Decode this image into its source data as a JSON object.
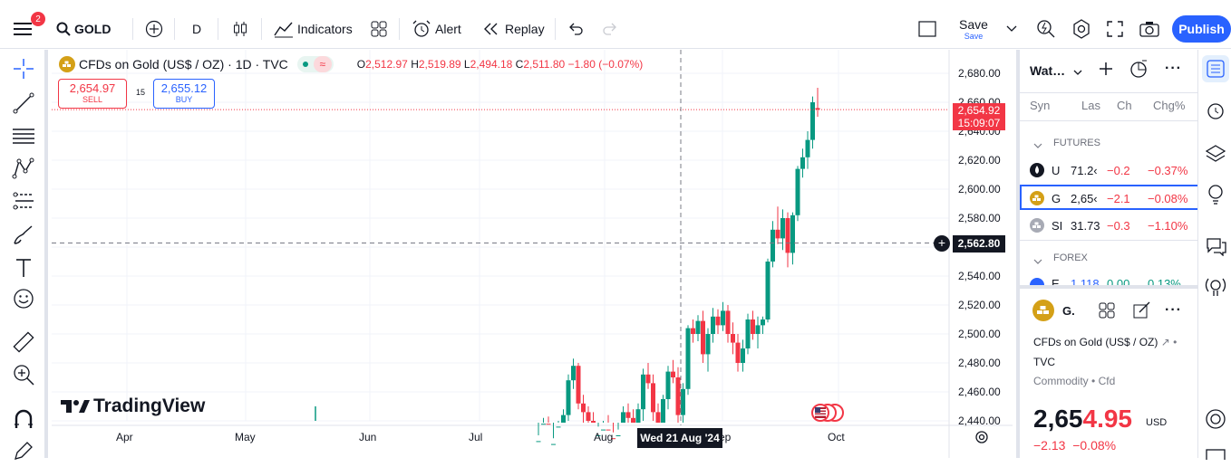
{
  "toolbar": {
    "menu_badge": "2",
    "symbol": "GOLD",
    "interval": "D",
    "indicators_label": "Indicators",
    "alert_label": "Alert",
    "replay_label": "Replay",
    "save_label": "Save",
    "save_sublabel": "Save",
    "publish_label": "Publish"
  },
  "legend": {
    "title": "CFDs on Gold (US$ / OZ) · 1D · TVC",
    "open_label": "O",
    "open": "2,512.97",
    "high_label": "H",
    "high": "2,519.89",
    "low_label": "L",
    "low": "2,494.18",
    "close_label": "C",
    "close": "2,511.80",
    "change": "−1.80 (−0.07%)",
    "sell_price": "2,654.97",
    "sell_label": "SELL",
    "spread": "15",
    "buy_price": "2,655.12",
    "buy_label": "BUY"
  },
  "price_axis": {
    "ticks": [
      "2,680.00",
      "2,660.00",
      "2,640.00",
      "2,620.00",
      "2,600.00",
      "2,580.00",
      "2,560.00",
      "2,540.00",
      "2,520.00",
      "2,500.00",
      "2,480.00",
      "2,460.00",
      "2,440.00"
    ],
    "last_price": "2,654.92",
    "countdown": "15:09:07",
    "crosshair_price": "2,562.80"
  },
  "time_axis": {
    "labels": [
      "Apr",
      "May",
      "Jun",
      "Jul",
      "Aug",
      "Sep",
      "Oct"
    ],
    "crosshair_date": "Wed 21 Aug '24"
  },
  "watermark": "TradingView",
  "watchlist": {
    "title": "Wat…",
    "col_symbol": "Syn",
    "col_last": "Las",
    "col_change": "Ch",
    "col_change_pct": "Chg%",
    "sections": [
      {
        "name": "FUTURES",
        "rows": [
          {
            "sym": "U",
            "last": "71.2‹",
            "chg": "−0.2",
            "pct": "−0.37%",
            "icon": "oil-drop-icon"
          },
          {
            "sym": "G",
            "last": "2,65‹",
            "chg": "−2.1",
            "pct": "−0.08%",
            "icon": "gold-bars-icon"
          },
          {
            "sym": "SI",
            "last": "31.73",
            "chg": "−0.3",
            "pct": "−1.10%",
            "icon": "silver-bars-icon"
          }
        ]
      },
      {
        "name": "FOREX",
        "rows": [
          {
            "sym": "E",
            "last": "1.118",
            "chg": "0.00",
            "pct": "0.13%",
            "icon": "eu-flag-icon"
          }
        ]
      }
    ]
  },
  "details": {
    "symbol_short": "G.",
    "name": "CFDs on Gold (US$ / OZ)",
    "exchange": "TVC",
    "category": "Commodity",
    "subcategory": "Cfd",
    "price_main": "2,65",
    "price_highlight": "4.95",
    "currency": "USD",
    "change": "−2.13",
    "change_pct": "−0.08%"
  },
  "colors": {
    "up": "#089981",
    "down": "#f23645",
    "accent": "#2962ff",
    "gold": "#d4a017"
  },
  "candles": [
    [
      2406,
      2430,
      2398,
      2426
    ],
    [
      2426,
      2442,
      2420,
      2438
    ],
    [
      2438,
      2443,
      2405,
      2412
    ],
    [
      2412,
      2428,
      2408,
      2424
    ],
    [
      2424,
      2440,
      2418,
      2436
    ],
    [
      2436,
      2448,
      2430,
      2444
    ],
    [
      2444,
      2472,
      2440,
      2468
    ],
    [
      2468,
      2483,
      2462,
      2478
    ],
    [
      2478,
      2480,
      2448,
      2452
    ],
    [
      2452,
      2458,
      2438,
      2446
    ],
    [
      2446,
      2450,
      2436,
      2440
    ],
    [
      2440,
      2446,
      2420,
      2424
    ],
    [
      2424,
      2436,
      2412,
      2430
    ],
    [
      2430,
      2440,
      2420,
      2434
    ],
    [
      2434,
      2444,
      2422,
      2428
    ],
    [
      2428,
      2432,
      2405,
      2410
    ],
    [
      2410,
      2434,
      2406,
      2430
    ],
    [
      2430,
      2450,
      2424,
      2446
    ],
    [
      2446,
      2452,
      2438,
      2442
    ],
    [
      2442,
      2448,
      2426,
      2432
    ],
    [
      2432,
      2452,
      2428,
      2448
    ],
    [
      2448,
      2476,
      2440,
      2472
    ],
    [
      2472,
      2480,
      2462,
      2466
    ],
    [
      2466,
      2472,
      2440,
      2446
    ],
    [
      2446,
      2452,
      2430,
      2436
    ],
    [
      2436,
      2458,
      2434,
      2455
    ],
    [
      2455,
      2478,
      2448,
      2474
    ],
    [
      2474,
      2482,
      2466,
      2470
    ],
    [
      2470,
      2477,
      2438,
      2444
    ],
    [
      2444,
      2466,
      2438,
      2462
    ],
    [
      2462,
      2506,
      2458,
      2504
    ],
    [
      2504,
      2510,
      2494,
      2500
    ],
    [
      2500,
      2513,
      2495,
      2509
    ],
    [
      2509,
      2516,
      2480,
      2486
    ],
    [
      2486,
      2504,
      2474,
      2500
    ],
    [
      2500,
      2518,
      2494,
      2512
    ],
    [
      2512,
      2517,
      2500,
      2506
    ],
    [
      2506,
      2522,
      2502,
      2516
    ],
    [
      2516,
      2520,
      2494,
      2500
    ],
    [
      2500,
      2508,
      2486,
      2494
    ],
    [
      2494,
      2500,
      2474,
      2480
    ],
    [
      2480,
      2496,
      2474,
      2490
    ],
    [
      2490,
      2514,
      2486,
      2510
    ],
    [
      2510,
      2516,
      2496,
      2500
    ],
    [
      2500,
      2512,
      2490,
      2506
    ],
    [
      2506,
      2512,
      2500,
      2510
    ],
    [
      2510,
      2552,
      2508,
      2550
    ],
    [
      2550,
      2578,
      2546,
      2572
    ],
    [
      2572,
      2588,
      2562,
      2566
    ],
    [
      2566,
      2586,
      2558,
      2580
    ],
    [
      2580,
      2584,
      2546,
      2556
    ],
    [
      2556,
      2584,
      2548,
      2582
    ],
    [
      2582,
      2616,
      2578,
      2614
    ],
    [
      2614,
      2628,
      2608,
      2622
    ],
    [
      2622,
      2640,
      2614,
      2634
    ],
    [
      2634,
      2664,
      2628,
      2660
    ],
    [
      2656,
      2670,
      2650,
      2655
    ]
  ]
}
